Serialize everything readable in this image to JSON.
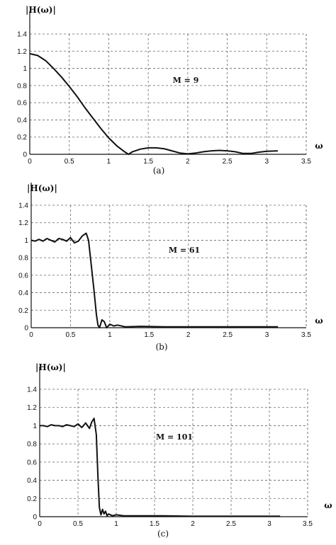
{
  "chart_data": [
    {
      "type": "line",
      "ylabel": "|H(ω)|",
      "xlabel": "ω",
      "annotation": "M = 9",
      "caption": "(a)",
      "xlim": [
        0,
        3.5
      ],
      "ylim": [
        0,
        1.4
      ],
      "xticks": [
        "0",
        "0.5",
        "1",
        "1.5",
        "2",
        "2.5",
        "3",
        "3.5"
      ],
      "yticks": [
        "0",
        "0.2",
        "0.4",
        "0.6",
        "0.8",
        "1",
        "1.2",
        "1.4"
      ],
      "grid": true,
      "series": [
        {
          "x": [
            0,
            0.1,
            0.2,
            0.3,
            0.4,
            0.5,
            0.6,
            0.7,
            0.8,
            0.9,
            1.0,
            1.1,
            1.2,
            1.25,
            1.3,
            1.4,
            1.5,
            1.6,
            1.7,
            1.8,
            1.9,
            2.0,
            2.1,
            2.2,
            2.3,
            2.4,
            2.5,
            2.6,
            2.7,
            2.8,
            2.9,
            3.0,
            3.14
          ],
          "y": [
            1.17,
            1.15,
            1.09,
            1.0,
            0.9,
            0.79,
            0.67,
            0.54,
            0.42,
            0.3,
            0.19,
            0.1,
            0.03,
            0.0,
            0.03,
            0.06,
            0.075,
            0.075,
            0.065,
            0.04,
            0.015,
            0.005,
            0.015,
            0.03,
            0.04,
            0.045,
            0.04,
            0.03,
            0.01,
            0.01,
            0.025,
            0.035,
            0.04
          ]
        }
      ]
    },
    {
      "type": "line",
      "ylabel": "|H(ω)|",
      "xlabel": "ω",
      "annotation": "M = 61",
      "caption": "(b)",
      "xlim": [
        0,
        3.5
      ],
      "ylim": [
        0,
        1.4
      ],
      "xticks": [
        "0",
        "0.5",
        "1",
        "1.5",
        "2",
        "2.5",
        "3",
        "3.5"
      ],
      "yticks": [
        "0",
        "0.2",
        "0.4",
        "0.6",
        "0.8",
        "1",
        "1.2",
        "1.4"
      ],
      "grid": true,
      "series": [
        {
          "x": [
            0,
            0.05,
            0.1,
            0.15,
            0.2,
            0.25,
            0.3,
            0.35,
            0.4,
            0.45,
            0.5,
            0.55,
            0.6,
            0.65,
            0.7,
            0.73,
            0.76,
            0.8,
            0.83,
            0.85,
            0.87,
            0.9,
            0.93,
            0.96,
            1.0,
            1.05,
            1.1,
            1.2,
            1.4,
            1.7,
            2.0,
            2.5,
            3.0,
            3.14
          ],
          "y": [
            1.0,
            0.99,
            1.01,
            0.99,
            1.02,
            1.0,
            0.98,
            1.02,
            1.01,
            0.99,
            1.03,
            0.97,
            0.99,
            1.05,
            1.08,
            1.0,
            0.75,
            0.42,
            0.15,
            0.03,
            0.0,
            0.09,
            0.07,
            0.0,
            0.04,
            0.02,
            0.03,
            0.01,
            0.015,
            0.01,
            0.01,
            0.01,
            0.01,
            0.01
          ]
        }
      ]
    },
    {
      "type": "line",
      "ylabel": "|H(ω)|",
      "xlabel": "ω",
      "annotation": "M = 101",
      "caption": "(c)",
      "xlim": [
        0,
        3.5
      ],
      "ylim": [
        0,
        1.4
      ],
      "xticks": [
        "0",
        "0.5",
        "1",
        "1.5",
        "2",
        "2.5",
        "3",
        "3.5"
      ],
      "yticks": [
        "0",
        "0.2",
        "0.4",
        "0.6",
        "0.8",
        "1",
        "1.2",
        "1.4"
      ],
      "grid": true,
      "series": [
        {
          "x": [
            0,
            0.05,
            0.1,
            0.15,
            0.2,
            0.25,
            0.3,
            0.35,
            0.4,
            0.45,
            0.5,
            0.55,
            0.6,
            0.65,
            0.68,
            0.71,
            0.74,
            0.76,
            0.78,
            0.8,
            0.82,
            0.84,
            0.86,
            0.88,
            0.9,
            0.95,
            1.0,
            1.1,
            1.3,
            1.6,
            2.0,
            2.5,
            3.0,
            3.14
          ],
          "y": [
            1.0,
            1.0,
            0.99,
            1.01,
            1.0,
            1.0,
            0.99,
            1.01,
            1.0,
            0.99,
            1.02,
            0.98,
            1.03,
            0.97,
            1.04,
            1.08,
            0.9,
            0.45,
            0.1,
            0.02,
            0.08,
            0.03,
            0.06,
            0.01,
            0.03,
            0.01,
            0.02,
            0.01,
            0.01,
            0.01,
            0.005,
            0.005,
            0.005,
            0.005
          ]
        }
      ]
    }
  ]
}
